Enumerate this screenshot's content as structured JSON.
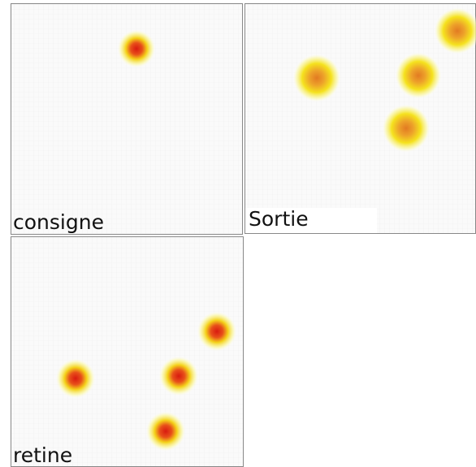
{
  "panels": [
    {
      "label": "consigne"
    },
    {
      "label": "Sortie"
    },
    {
      "label": "retine"
    }
  ]
}
